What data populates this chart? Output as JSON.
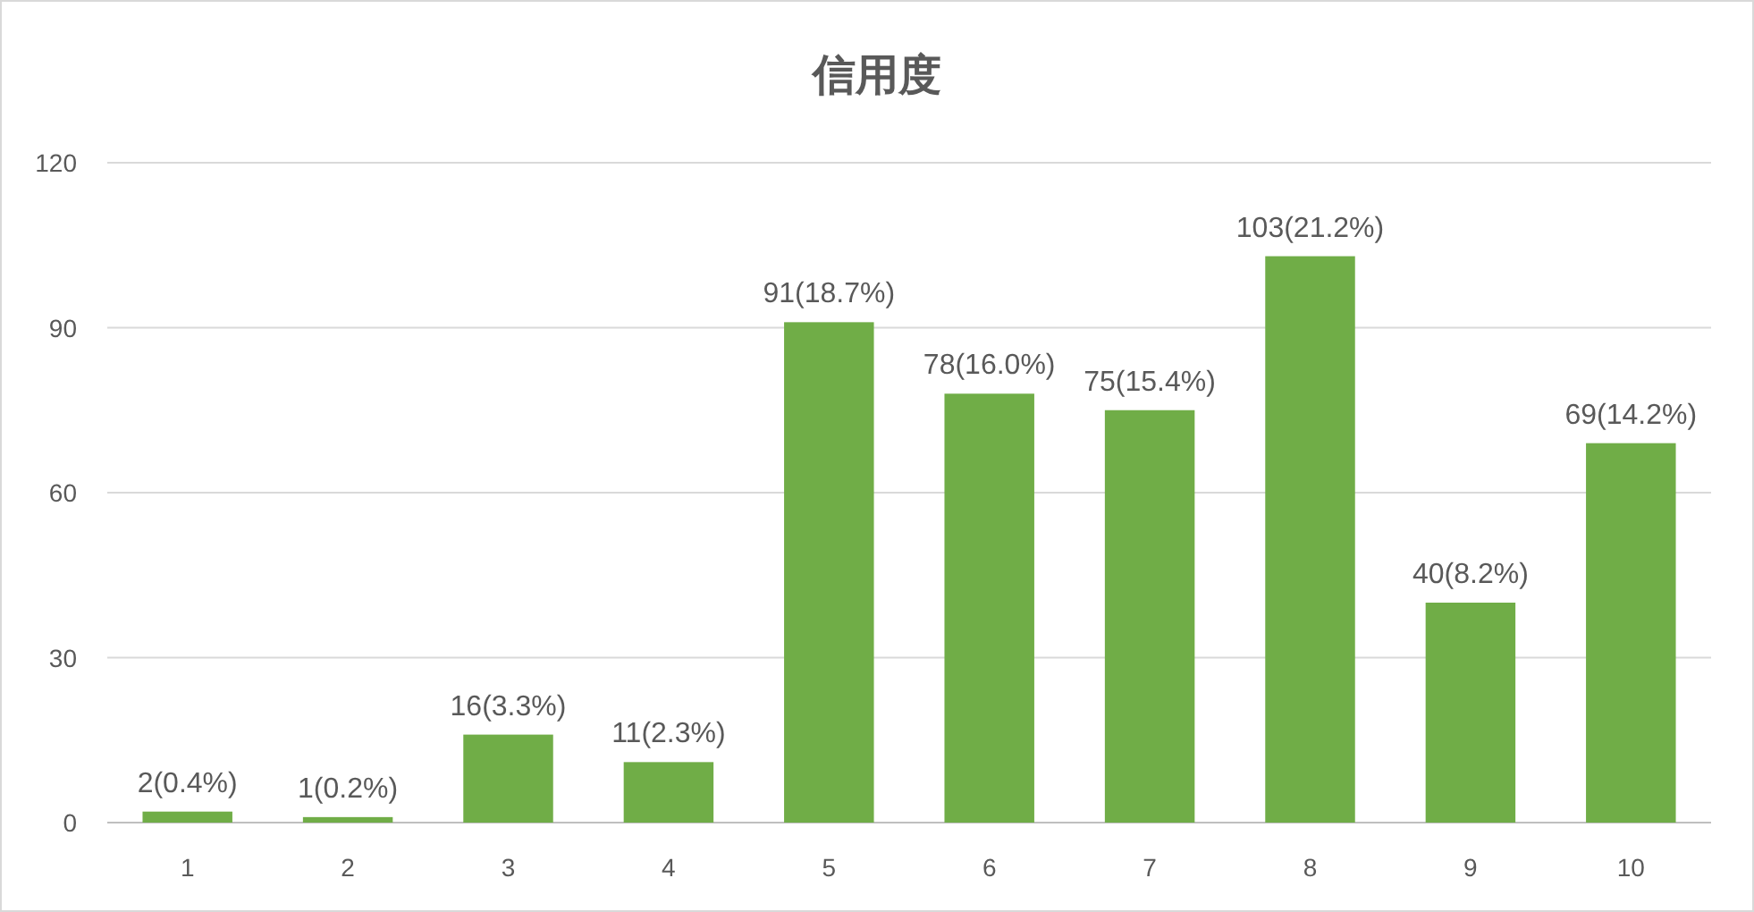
{
  "chart_data": {
    "type": "bar",
    "title": "信用度",
    "categories": [
      "1",
      "2",
      "3",
      "4",
      "5",
      "6",
      "7",
      "8",
      "9",
      "10"
    ],
    "values": [
      2,
      1,
      16,
      11,
      91,
      78,
      75,
      103,
      40,
      69
    ],
    "value_labels": [
      "2(0.4%)",
      "1(0.2%)",
      "16(3.3%)",
      "11(2.3%)",
      "91(18.7%)",
      "78(16.0%)",
      "75(15.4%)",
      "103(21.2%)",
      "40(8.2%)",
      "69(14.2%)"
    ],
    "color": "#70ad47",
    "ylim": [
      0,
      120
    ],
    "yticks": [
      0,
      30,
      60,
      90,
      120
    ],
    "grid": "y"
  }
}
